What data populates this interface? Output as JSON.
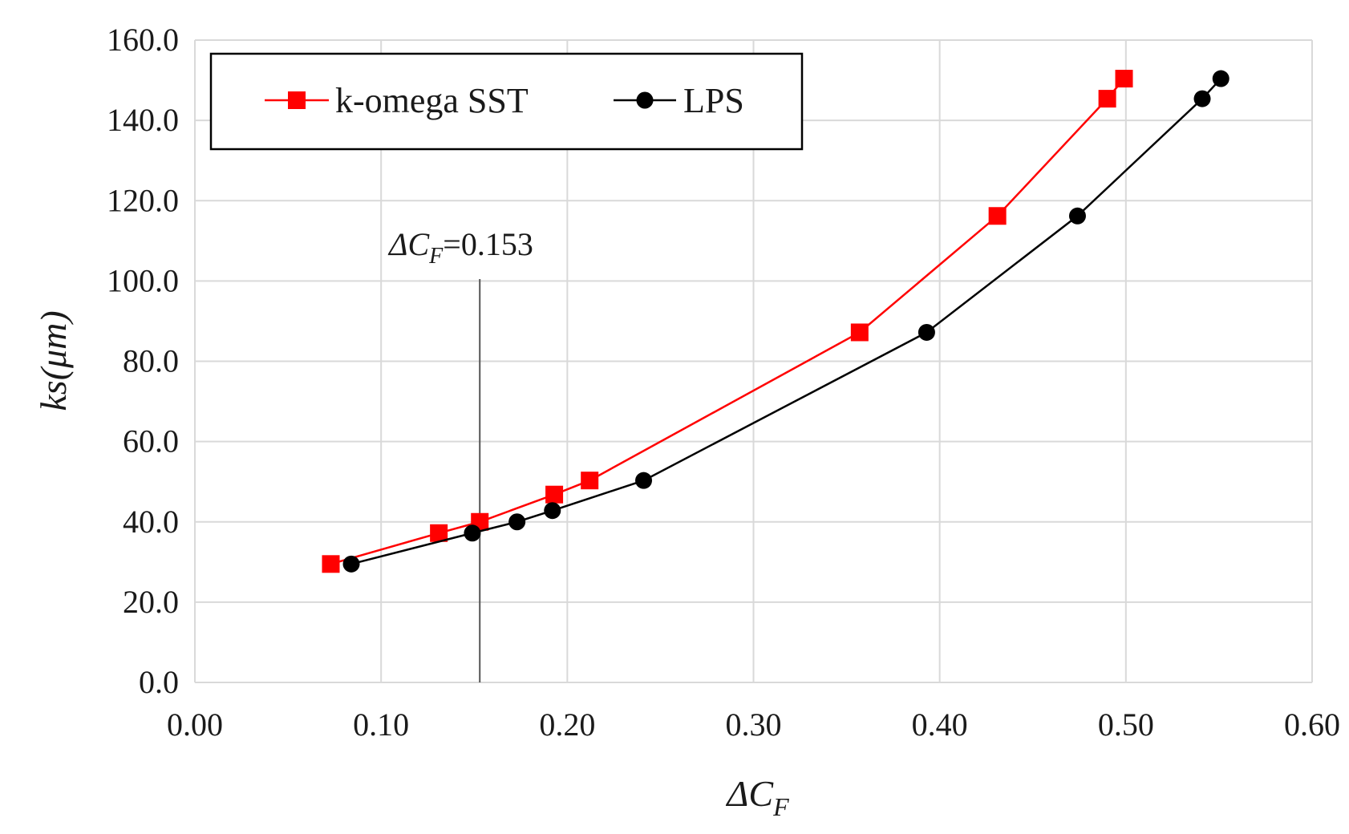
{
  "chart_data": {
    "type": "line",
    "xlim": [
      0,
      0.6
    ],
    "ylim": [
      0,
      160
    ],
    "x_ticks": [
      "0.00",
      "0.10",
      "0.20",
      "0.30",
      "0.40",
      "0.50",
      "0.60"
    ],
    "y_ticks": [
      "0.0",
      "20.0",
      "40.0",
      "60.0",
      "80.0",
      "100.0",
      "120.0",
      "140.0",
      "160.0"
    ],
    "xlabel": {
      "prefix": "ΔC",
      "sub": "F"
    },
    "ylabel": "ks(μm)",
    "grid": true,
    "legend": {
      "placement": "top-left",
      "entries": [
        {
          "label": "k-omega SST",
          "color": "#ff0000",
          "marker": "square"
        },
        {
          "label": "LPS",
          "color": "#000000",
          "marker": "circle"
        }
      ]
    },
    "series": [
      {
        "name": "k-omega SST",
        "color": "#ff0000",
        "line_color": "#ff0000",
        "marker": "square",
        "x": [
          0.073,
          0.131,
          0.153,
          0.193,
          0.212,
          0.357,
          0.431,
          0.49,
          0.499
        ],
        "y": [
          29.5,
          37.2,
          40.0,
          46.8,
          50.3,
          87.2,
          116.2,
          145.4,
          150.4
        ]
      },
      {
        "name": "LPS",
        "color": "#000000",
        "line_color": "#000000",
        "marker": "circle",
        "x": [
          0.084,
          0.149,
          0.173,
          0.192,
          0.241,
          0.393,
          0.474,
          0.541,
          0.551
        ],
        "y": [
          29.5,
          37.2,
          40.0,
          42.8,
          50.3,
          87.2,
          116.2,
          145.4,
          150.4
        ]
      }
    ],
    "annotations": [
      {
        "type": "vline",
        "x": 0.153,
        "prefix": "ΔC",
        "sub": "F",
        "suffix": "=0.153"
      }
    ]
  }
}
